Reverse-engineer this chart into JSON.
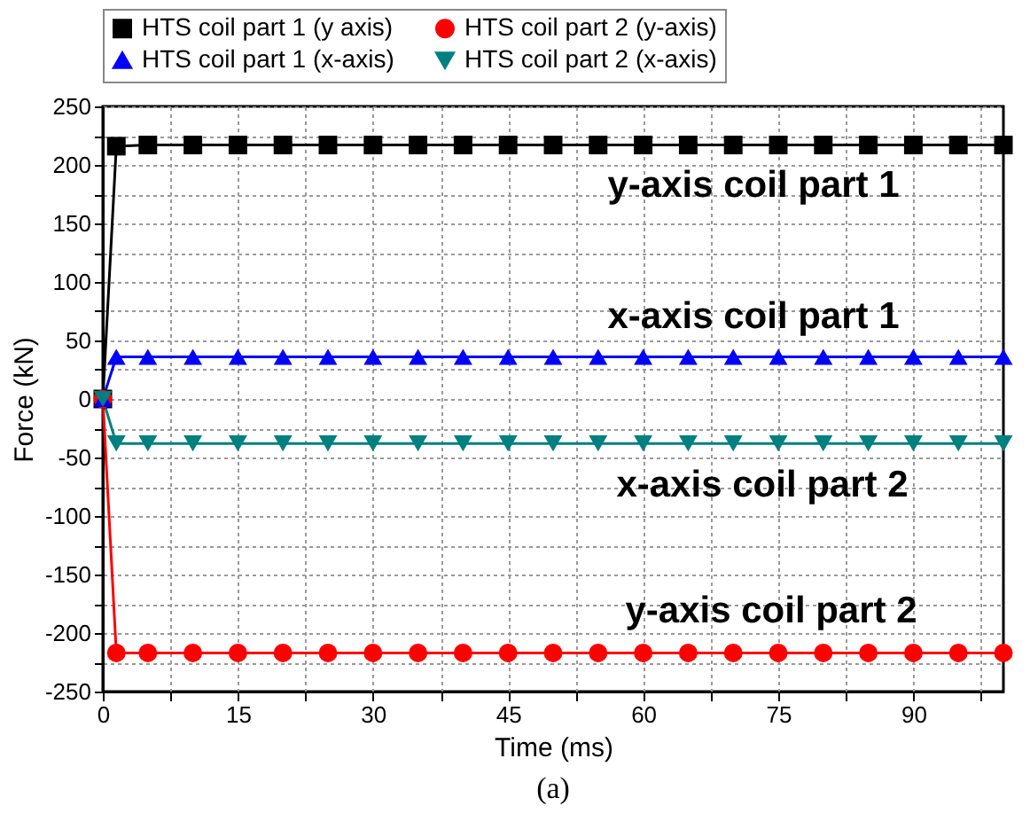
{
  "chart_data": {
    "type": "line",
    "xlabel": "Time (ms)",
    "ylabel": "Force (kN)",
    "x": [
      0,
      1.5,
      5,
      10,
      15,
      20,
      25,
      30,
      35,
      40,
      45,
      50,
      55,
      60,
      65,
      70,
      75,
      80,
      85,
      90,
      95,
      100
    ],
    "series": [
      {
        "name": "HTS coil part 1 (y axis)",
        "color": "#000000",
        "marker": "square",
        "values": [
          0,
          216,
          217,
          217,
          217,
          217,
          217,
          217,
          217,
          217,
          217,
          217,
          217,
          217,
          217,
          217,
          217,
          217,
          217,
          217,
          217,
          217
        ]
      },
      {
        "name": "HTS coil part 2 (y-axis)",
        "color": "#ff0000",
        "marker": "circle",
        "values": [
          0,
          -217,
          -217,
          -217,
          -217,
          -217,
          -217,
          -217,
          -217,
          -217,
          -217,
          -217,
          -217,
          -217,
          -217,
          -217,
          -217,
          -217,
          -217,
          -217,
          -217,
          -217
        ]
      },
      {
        "name": "HTS coil part 1 (x-axis)",
        "color": "#0000ff",
        "marker": "triangle",
        "values": [
          0,
          36,
          36,
          36,
          36,
          36,
          36,
          36,
          36,
          36,
          36,
          36,
          36,
          36,
          36,
          36,
          36,
          36,
          36,
          36,
          36,
          36
        ]
      },
      {
        "name": "HTS coil part 2 (x-axis)",
        "color": "#008080",
        "marker": "triangle-down",
        "values": [
          0,
          -38,
          -38,
          -38,
          -38,
          -38,
          -38,
          -38,
          -38,
          -38,
          -38,
          -38,
          -38,
          -38,
          -38,
          -38,
          -38,
          -38,
          -38,
          -38,
          -38,
          -38
        ]
      }
    ],
    "xlim": [
      0,
      100
    ],
    "xticks": [
      0,
      {
        "value": 7.5,
        "label": null
      },
      15,
      {
        "value": 22.5,
        "label": null
      },
      30,
      {
        "value": 37.5,
        "label": null
      },
      45,
      {
        "value": 52.5,
        "label": null
      },
      60,
      {
        "value": 67.5,
        "label": null
      },
      75,
      {
        "value": 82.5,
        "label": null
      },
      90,
      {
        "value": 97.5,
        "label": null
      }
    ],
    "ylim": [
      -250,
      250
    ],
    "yticks": [
      -250,
      {
        "value": -225,
        "label": null
      },
      -200,
      {
        "value": -175,
        "label": null
      },
      -150,
      {
        "value": -125,
        "label": null
      },
      -100,
      {
        "value": -75,
        "label": null
      },
      -50,
      {
        "value": -25,
        "label": null
      },
      0,
      {
        "value": 25,
        "label": null
      },
      50,
      {
        "value": 75,
        "label": null
      },
      100,
      {
        "value": 125,
        "label": null
      },
      150,
      {
        "value": 175,
        "label": null
      },
      200,
      {
        "value": 225,
        "label": null
      },
      250
    ],
    "grid": true,
    "legend": "top",
    "line_style": "solid",
    "annotations": [
      "y-axis coil part 1",
      "x-axis coil part 1",
      "x-axis coil part 2",
      "y-axis coil part 2",
      "(a)"
    ]
  }
}
